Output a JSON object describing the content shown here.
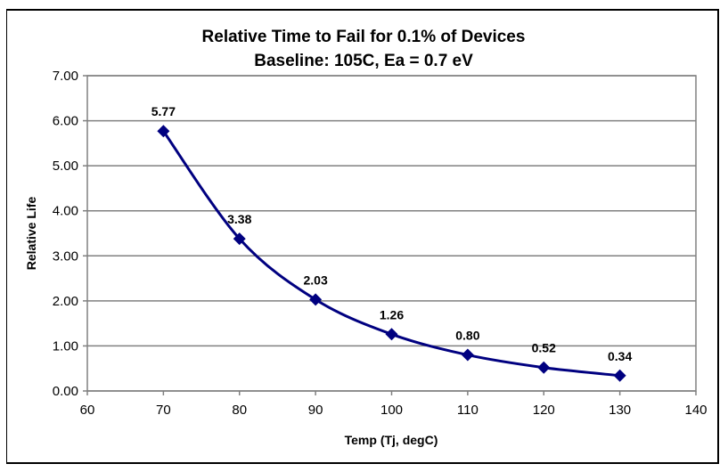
{
  "chart_data": {
    "type": "line",
    "title": "Relative Time to Fail for 0.1% of Devices",
    "subtitle": "Baseline: 105C, Ea = 0.7 eV",
    "xlabel": "Temp (Tj, degC)",
    "ylabel": "Relative Life",
    "xlim": [
      60,
      140
    ],
    "ylim": [
      0,
      7
    ],
    "xticks": [
      "60",
      "70",
      "80",
      "90",
      "100",
      "110",
      "120",
      "130",
      "140"
    ],
    "yticks": [
      "0.00",
      "1.00",
      "2.00",
      "3.00",
      "4.00",
      "5.00",
      "6.00",
      "7.00"
    ],
    "grid": "horizontal",
    "legend": "none",
    "series": [
      {
        "name": "Relative Life",
        "color": "#000080",
        "marker": "diamond",
        "smooth": true,
        "x": [
          70,
          80,
          90,
          100,
          110,
          120,
          130
        ],
        "values": [
          5.77,
          3.38,
          2.03,
          1.26,
          0.8,
          0.52,
          0.34
        ],
        "labels": [
          "5.77",
          "3.38",
          "2.03",
          "1.26",
          "0.80",
          "0.52",
          "0.34"
        ]
      }
    ]
  }
}
